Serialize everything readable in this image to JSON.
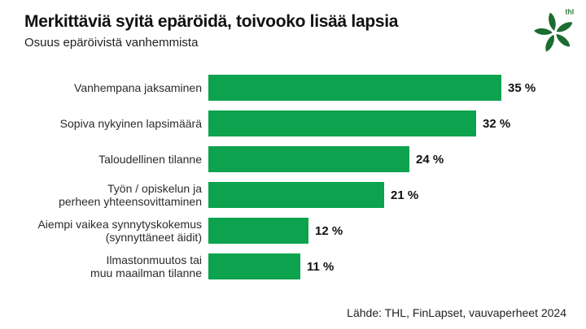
{
  "page": {
    "background": "#ffffff"
  },
  "header": {
    "title": "Merkittäviä syitä epäröidä, toivooko lisää lapsia",
    "subtitle": "Osuus epäröivistä vanhemmista"
  },
  "logo": {
    "label": "thl",
    "color": "#1c6c31",
    "text_color": "#2f7d3b"
  },
  "chart_data": {
    "type": "bar",
    "orientation": "horizontal",
    "title": "Merkittäviä syitä epäröidä, toivooko lisää lapsia",
    "subtitle": "Osuus epäröivistä vanhemmista",
    "unit": "%",
    "bar_color": "#0ca24e",
    "grid": false,
    "legend": false,
    "xlim": [
      0,
      35
    ],
    "categories": [
      "Vanhempana jaksaminen",
      "Sopiva nykyinen lapsimäärä",
      "Taloudellinen tilanne",
      "Työn / opiskelun ja\nperheen yhteensovittaminen",
      "Aiempi vaikea synnytyskokemus\n(synnyttäneet äidit)",
      "Ilmastonmuutos tai\nmuu maailman tilanne"
    ],
    "values": [
      35,
      32,
      24,
      21,
      12,
      11
    ],
    "value_labels": [
      "35 %",
      "32 %",
      "24 %",
      "21 %",
      "12 %",
      "11 %"
    ]
  },
  "footer": {
    "source": "Lähde: THL, FinLapset, vauvaperheet 2024"
  }
}
